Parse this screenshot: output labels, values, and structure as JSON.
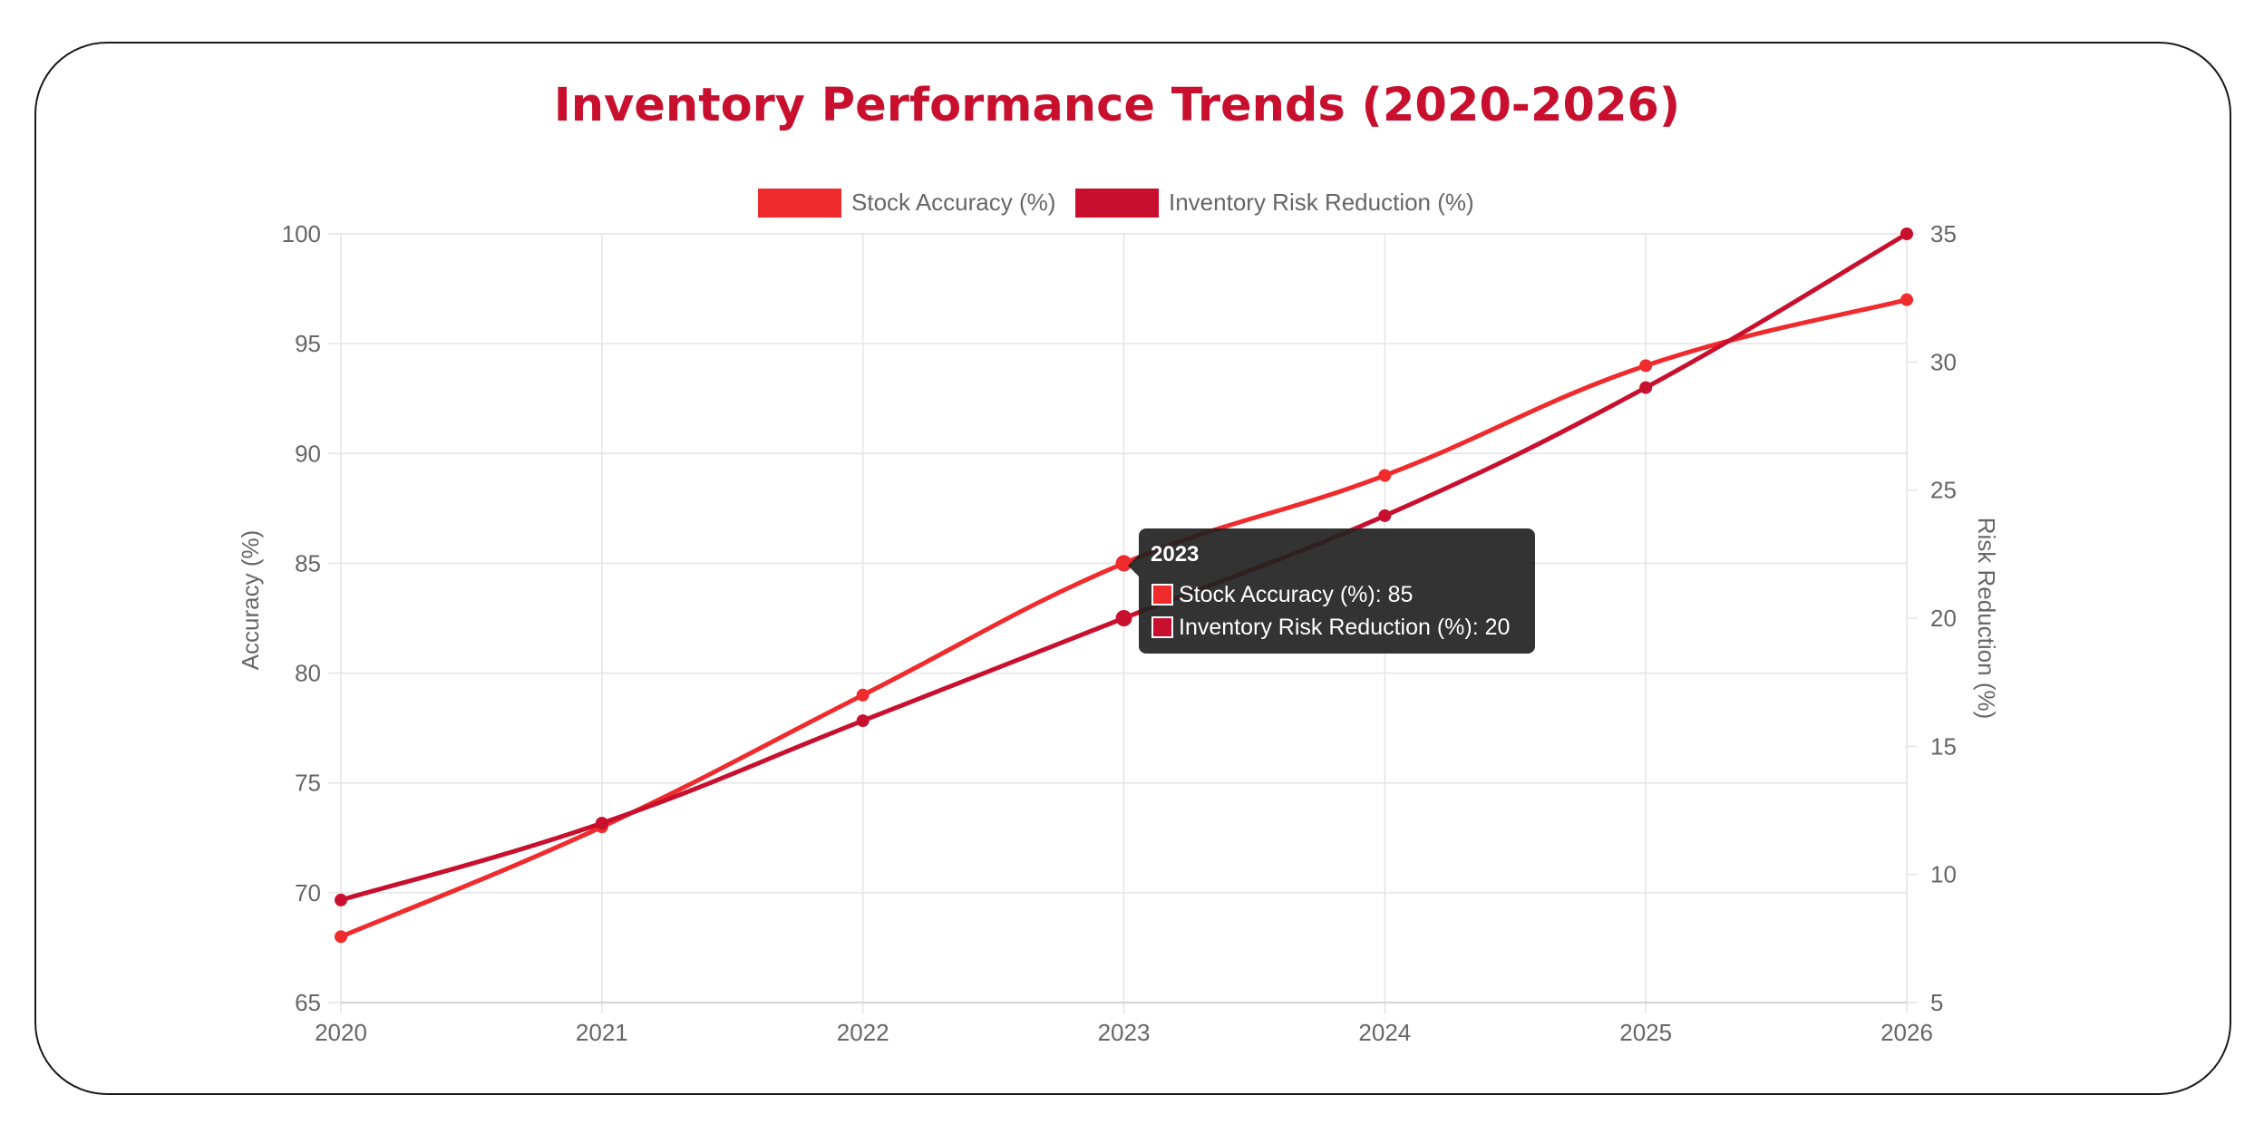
{
  "chart_data": {
    "type": "line",
    "title": "Inventory Performance Trends (2020-2026)",
    "categories": [
      "2020",
      "2021",
      "2022",
      "2023",
      "2024",
      "2025",
      "2026"
    ],
    "series": [
      {
        "name": "Stock Accuracy (%)",
        "axis": "left",
        "color": "#ef2b2d",
        "values": [
          68,
          73,
          79,
          85,
          89,
          94,
          97
        ]
      },
      {
        "name": "Inventory Risk Reduction (%)",
        "axis": "right",
        "color": "#c8102e",
        "values": [
          9,
          12,
          16,
          20,
          24,
          29,
          35
        ]
      }
    ],
    "y_left": {
      "label": "Accuracy (%)",
      "min": 65,
      "max": 100,
      "step": 5
    },
    "y_right": {
      "label": "Risk Reduction (%)",
      "min": 5,
      "max": 35,
      "step": 5
    },
    "grid": true,
    "legend_position": "top",
    "title_color": "#c8102e",
    "tooltip": {
      "title": "2023",
      "lines": [
        "Stock Accuracy (%): 85",
        "Inventory Risk Reduction (%): 20"
      ]
    }
  }
}
